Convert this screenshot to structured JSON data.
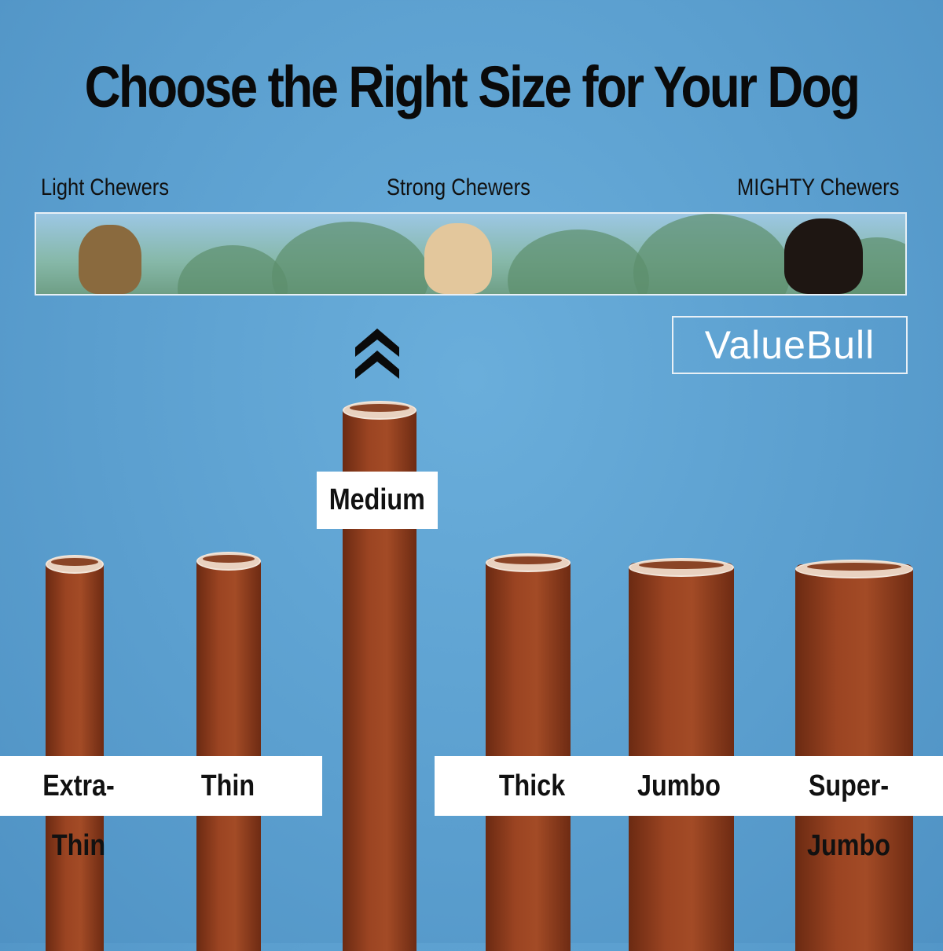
{
  "title": "Choose the Right Size for Your Dog",
  "chewer_scale": {
    "left": "Light Chewers",
    "middle": "Strong Chewers",
    "right": "MIGHTY Chewers"
  },
  "brand": "ValueBull",
  "sizes": [
    "Extra-Thin",
    "Thin",
    "Medium",
    "Thick",
    "Jumbo",
    "Super- Jumbo"
  ],
  "colors": {
    "background": "#5b9fcf",
    "stick": "#9b4422",
    "label_bg": "#ffffff",
    "text": "#111111"
  },
  "icons": {
    "highlight": "double-chevron-up-icon"
  }
}
